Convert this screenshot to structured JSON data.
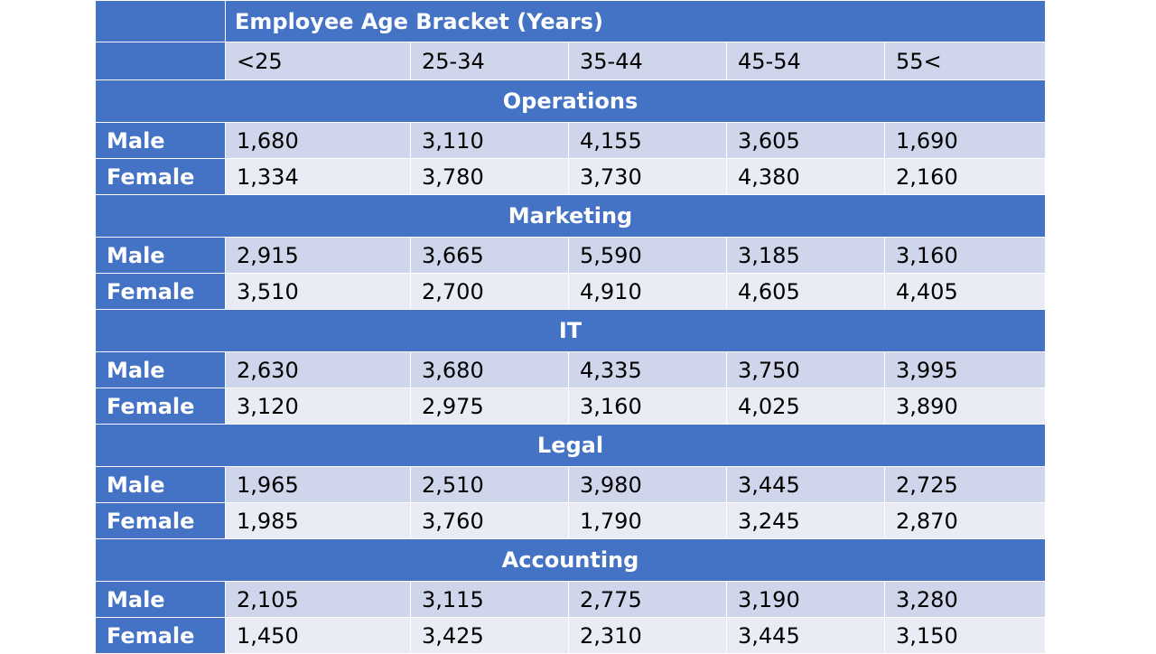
{
  "table": {
    "title": "Employee Age Bracket (Years)",
    "brackets": [
      "<25",
      "25-34",
      "35-44",
      "45-54",
      "55<"
    ],
    "sections": [
      {
        "name": "Operations",
        "rows": [
          {
            "label": "Male",
            "values": [
              "1,680",
              "3,110",
              "4,155",
              "3,605",
              "1,690"
            ]
          },
          {
            "label": "Female",
            "values": [
              "1,334",
              "3,780",
              "3,730",
              "4,380",
              "2,160"
            ]
          }
        ]
      },
      {
        "name": "Marketing",
        "rows": [
          {
            "label": "Male",
            "values": [
              "2,915",
              "3,665",
              "5,590",
              "3,185",
              "3,160"
            ]
          },
          {
            "label": "Female",
            "values": [
              "3,510",
              "2,700",
              "4,910",
              "4,605",
              "4,405"
            ]
          }
        ]
      },
      {
        "name": "IT",
        "rows": [
          {
            "label": "Male",
            "values": [
              "2,630",
              "3,680",
              "4,335",
              "3,750",
              "3,995"
            ]
          },
          {
            "label": "Female",
            "values": [
              "3,120",
              "2,975",
              "3,160",
              "4,025",
              "3,890"
            ]
          }
        ]
      },
      {
        "name": "Legal",
        "rows": [
          {
            "label": "Male",
            "values": [
              "1,965",
              "2,510",
              "3,980",
              "3,445",
              "2,725"
            ]
          },
          {
            "label": "Female",
            "values": [
              "1,985",
              "3,760",
              "1,790",
              "3,245",
              "2,870"
            ]
          }
        ]
      },
      {
        "name": "Accounting",
        "rows": [
          {
            "label": "Male",
            "values": [
              "2,105",
              "3,115",
              "2,775",
              "3,190",
              "3,280"
            ]
          },
          {
            "label": "Female",
            "values": [
              "1,450",
              "3,425",
              "2,310",
              "3,445",
              "3,150"
            ]
          }
        ]
      }
    ]
  },
  "colors": {
    "header_blue": "#4472c4",
    "row_shade_dark": "#cfd5ea",
    "row_shade_light": "#e9ebf5"
  }
}
